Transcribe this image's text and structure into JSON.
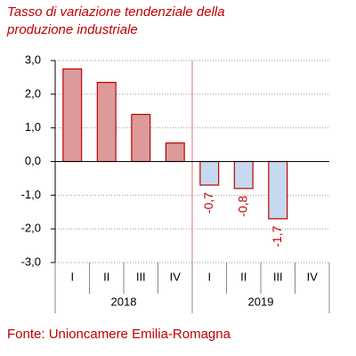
{
  "chart_data": {
    "type": "bar",
    "title": "Tasso di variazione tendenziale della produzione industriale",
    "source": "Fonte: Unioncamere Emilia-Romagna",
    "categories": [
      "I",
      "II",
      "III",
      "IV",
      "I",
      "II",
      "III",
      "IV"
    ],
    "groups": [
      {
        "name": "2018",
        "color": "#dd9a9a"
      },
      {
        "name": "2019",
        "color": "#c6d9f1"
      }
    ],
    "values": [
      2.75,
      2.35,
      1.4,
      0.55,
      -0.7,
      -0.8,
      -1.7,
      null
    ],
    "value_labels": [
      null,
      null,
      null,
      null,
      "-0,7",
      "-0,8",
      "-1,7",
      null
    ],
    "bar_stroke": "#c00000",
    "ylim": [
      -3,
      3
    ],
    "yticks": [
      {
        "value": 3,
        "label": "3,0"
      },
      {
        "value": 2,
        "label": "2,0"
      },
      {
        "value": 1,
        "label": "1,0"
      },
      {
        "value": 0,
        "label": "0,0"
      },
      {
        "value": -1,
        "label": "-1,0"
      },
      {
        "value": -2,
        "label": "-2,0"
      },
      {
        "value": -3,
        "label": "-3,0"
      }
    ],
    "grid": true
  }
}
